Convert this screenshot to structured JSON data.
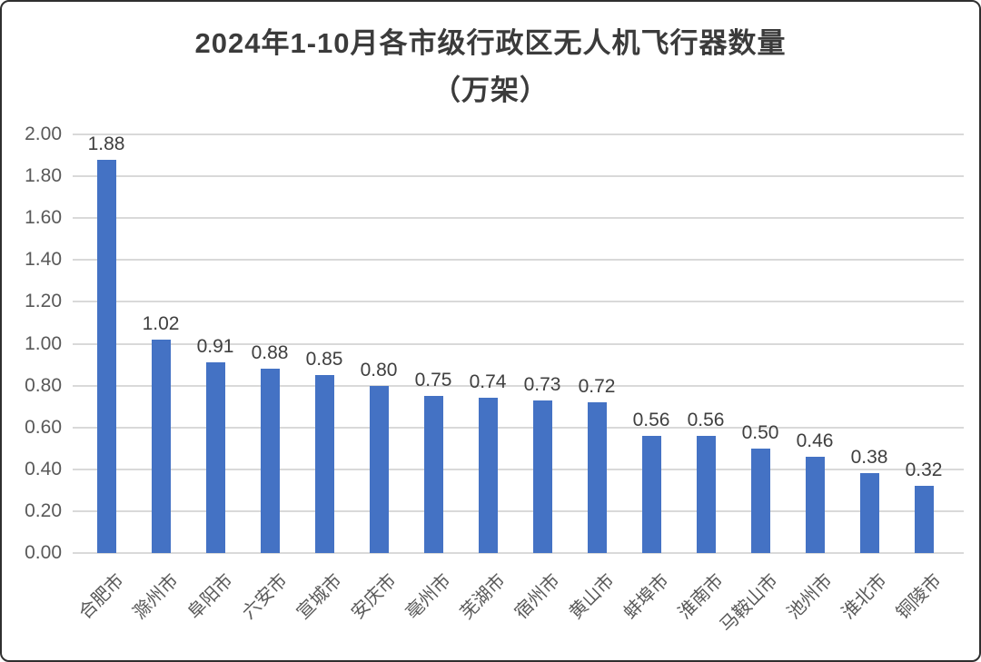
{
  "chart_data": {
    "type": "bar",
    "title": "2024年1-10月各市级行政区无人机飞行器数量（万架）",
    "title_line1": "2024年1-10月各市级行政区无人机飞行器数量",
    "title_line2": "（万架）",
    "xlabel": "",
    "ylabel": "",
    "categories": [
      "合肥市",
      "滁州市",
      "阜阳市",
      "六安市",
      "宣城市",
      "安庆市",
      "亳州市",
      "芜湖市",
      "宿州市",
      "黄山市",
      "蚌埠市",
      "淮南市",
      "马鞍山市",
      "池州市",
      "淮北市",
      "铜陵市"
    ],
    "values": [
      1.88,
      1.02,
      0.91,
      0.88,
      0.85,
      0.8,
      0.75,
      0.74,
      0.73,
      0.72,
      0.56,
      0.56,
      0.5,
      0.46,
      0.38,
      0.32
    ],
    "value_labels": [
      "1.88",
      "1.02",
      "0.91",
      "0.88",
      "0.85",
      "0.80",
      "0.75",
      "0.74",
      "0.73",
      "0.72",
      "0.56",
      "0.56",
      "0.50",
      "0.46",
      "0.38",
      "0.32"
    ],
    "ylim": [
      0.0,
      2.0
    ],
    "ytick_step": 0.2,
    "ytick_labels": [
      "0.00",
      "0.20",
      "0.40",
      "0.60",
      "0.80",
      "1.00",
      "1.20",
      "1.40",
      "1.60",
      "1.80",
      "2.00"
    ],
    "grid": true,
    "legend_position": "none",
    "bar_color": "#4472c4",
    "gridline_color": "#d9d9d9",
    "axis_text_color": "#595959",
    "value_label_color": "#3f3f3f",
    "title_color": "#3b3b3b"
  }
}
